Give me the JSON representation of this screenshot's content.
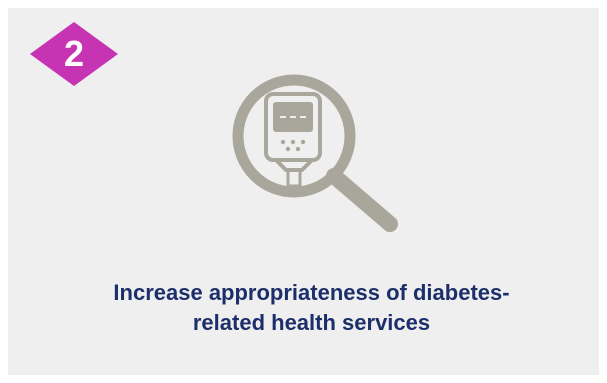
{
  "badge": {
    "number": "2",
    "color": "#c633b3"
  },
  "icon": {
    "name": "magnifier-glucometer-icon",
    "color": "#a9a69c"
  },
  "caption": {
    "line1": "Increase appropriateness of diabetes-",
    "line2": "related health services",
    "color": "#1c2f6b"
  }
}
